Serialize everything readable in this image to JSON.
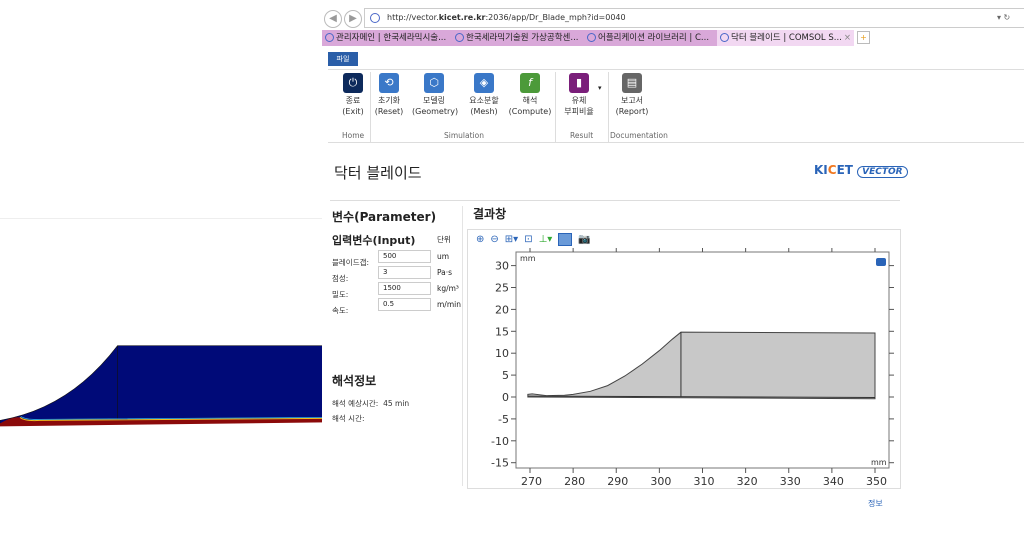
{
  "browser": {
    "url_prefix": "http://vector.",
    "url_domain": "kicet.re.kr",
    "url_rest": ":2036/app/Dr_Blade_mph?id=0040",
    "tabs": [
      {
        "label": "관리자메인 | 한국세라믹시술..."
      },
      {
        "label": "한국세라믹기술원 가상공학센..."
      },
      {
        "label": "어플리케이션 라이브러리 | C..."
      },
      {
        "label": "닥터 블레이드 | COMSOL S...",
        "active": true
      }
    ]
  },
  "ribbon": {
    "file_label": "파일",
    "buttons": [
      {
        "kr": "종료",
        "en": "(Exit)",
        "icon": "power-icon",
        "color": "#0d2a5c"
      },
      {
        "kr": "초기화",
        "en": "(Reset)",
        "icon": "reset-icon",
        "color": "#3a78c8"
      },
      {
        "kr": "모델링",
        "en": "(Geometry)",
        "icon": "geometry-icon",
        "color": "#3a78c8"
      },
      {
        "kr": "요소분할",
        "en": "(Mesh)",
        "icon": "mesh-icon",
        "color": "#3a78c8"
      },
      {
        "kr": "해석",
        "en": "(Compute)",
        "icon": "compute-icon",
        "color": "#4c9a3a"
      },
      {
        "kr": "유체",
        "en": "부피비율",
        "icon": "fluid-icon",
        "color": "#7a1f7a"
      },
      {
        "kr": "보고서",
        "en": "(Report)",
        "icon": "report-icon",
        "color": "#666666"
      }
    ],
    "groups": {
      "home": "Home",
      "simulation": "Simulation",
      "result": "Result",
      "documentation": "Documentation"
    }
  },
  "page": {
    "title": "닥터 블레이드",
    "logo": "KICET VECTOR",
    "params_title": "변수(Parameter)",
    "input_title": "입력변수(Input)",
    "unit_header": "단위",
    "inputs": [
      {
        "label": "블레이드갭:",
        "value": "500",
        "unit": "um"
      },
      {
        "label": "점성:",
        "value": "3",
        "unit": "Pa·s"
      },
      {
        "label": "밀도:",
        "value": "1500",
        "unit": "kg/m³"
      },
      {
        "label": "속도:",
        "value": "0.5",
        "unit": "m/min"
      }
    ],
    "info_title": "해석정보",
    "est_time_label": "해석 예상시간:",
    "est_time_value": "45 min",
    "time_label": "해석 시간:",
    "result_title": "결과창",
    "info_link": "정보"
  },
  "chart_data": {
    "type": "area",
    "x_unit": "mm",
    "y_unit": "mm",
    "xlim": [
      266,
      351
    ],
    "ylim": [
      -16,
      32
    ],
    "x_ticks": [
      270,
      280,
      290,
      300,
      310,
      320,
      330,
      340,
      350
    ],
    "y_ticks": [
      30,
      25,
      20,
      15,
      10,
      5,
      0,
      -5,
      -10,
      -15
    ],
    "profile_x": [
      269.5,
      270.5,
      274,
      278,
      280,
      284,
      288,
      292,
      296,
      300,
      303,
      305,
      350,
      350,
      269.5
    ],
    "profile_y": [
      0.6,
      0.7,
      0.3,
      0.4,
      0.6,
      1.3,
      2.6,
      4.8,
      7.5,
      10.6,
      13.2,
      14.8,
      14.6,
      -0.4,
      0
    ],
    "grid": false,
    "fill_color": "#c8c8c8"
  }
}
